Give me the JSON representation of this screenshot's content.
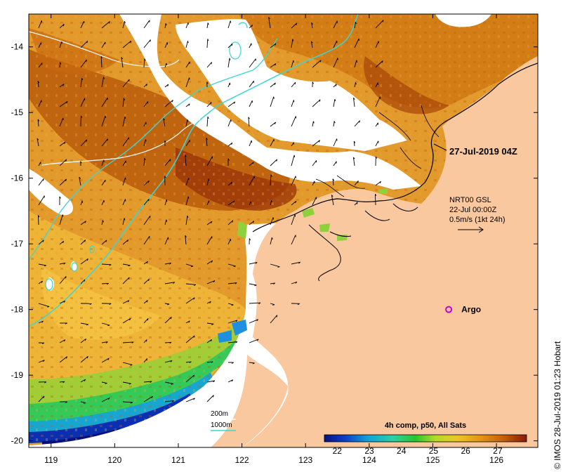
{
  "map": {
    "longitude_ticks": [
      "119",
      "120",
      "121",
      "122",
      "123",
      "124",
      "125",
      "126"
    ],
    "latitude_ticks": [
      "-14",
      "-15",
      "-16",
      "-17",
      "-18",
      "-19",
      "-20"
    ],
    "lon_range": [
      118.65,
      126.65
    ],
    "lat_range": [
      -13.5,
      -20.1
    ],
    "timestamp_label": "27-Jul-2019 04Z",
    "current_legend": {
      "line1": "NRT00 GSL",
      "line2": "22-Jul 00:00Z",
      "line3": "0.5m/s (1kt 24h)"
    },
    "argo_label": "Argo",
    "argo_position": {
      "lon": 125.25,
      "lat": -18.0
    },
    "contours": {
      "line1": "200m",
      "line2": "1000m"
    },
    "colorbar": {
      "title": "4h comp, p50, All Sats",
      "ticks": [
        "22",
        "23",
        "24",
        "25",
        "26",
        "27"
      ],
      "range": [
        21.6,
        27.9
      ]
    },
    "credit": "© IMOS 28-Jul-2019 01:23 Hobart",
    "colors": {
      "land": "#f9c89f",
      "contour_200": "#ffffff",
      "contour_1000": "#3ad6d6",
      "argo": "#cc00cc"
    }
  }
}
